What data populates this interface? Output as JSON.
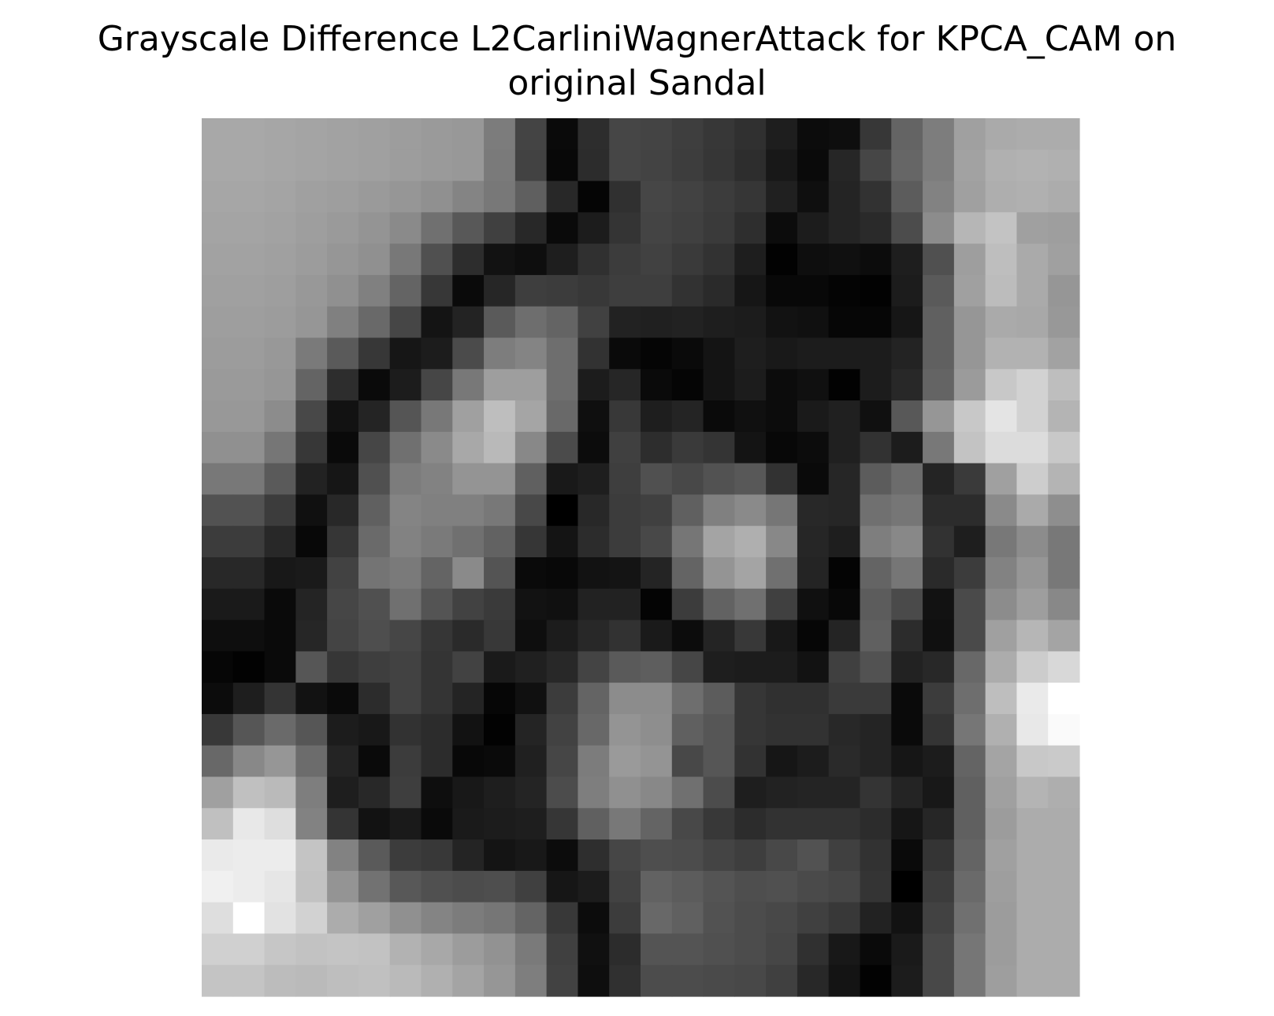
{
  "chart_data": {
    "type": "heatmap",
    "title": "Grayscale Difference L2CarliniWagnerAttack for KPCA_CAM on original Sandal",
    "title_lines": [
      "Grayscale Difference L2CarliniWagnerAttack for KPCA_CAM on",
      "original Sandal"
    ],
    "colormap": "gray",
    "axes_visible": false,
    "rows": 28,
    "cols": 28,
    "value_range": [
      0,
      255
    ],
    "values": [
      [
        168,
        168,
        166,
        164,
        162,
        160,
        157,
        154,
        152,
        124,
        68,
        10,
        45,
        70,
        68,
        62,
        55,
        48,
        30,
        12,
        14,
        55,
        100,
        125,
        160,
        170,
        172,
        172
      ],
      [
        168,
        168,
        166,
        164,
        162,
        160,
        157,
        154,
        152,
        122,
        66,
        8,
        44,
        70,
        67,
        61,
        54,
        45,
        24,
        10,
        38,
        70,
        102,
        125,
        162,
        176,
        178,
        176
      ],
      [
        166,
        166,
        164,
        160,
        158,
        154,
        150,
        144,
        132,
        120,
        95,
        40,
        5,
        48,
        70,
        66,
        60,
        54,
        32,
        15,
        36,
        50,
        92,
        130,
        160,
        174,
        176,
        172
      ],
      [
        164,
        164,
        162,
        158,
        154,
        148,
        138,
        112,
        88,
        64,
        40,
        10,
        28,
        52,
        68,
        64,
        58,
        46,
        12,
        28,
        36,
        42,
        76,
        140,
        182,
        195,
        160,
        158
      ],
      [
        162,
        162,
        160,
        156,
        150,
        144,
        120,
        80,
        45,
        18,
        14,
        30,
        48,
        60,
        65,
        58,
        50,
        30,
        2,
        14,
        16,
        12,
        30,
        80,
        158,
        190,
        170,
        160
      ],
      [
        160,
        160,
        158,
        152,
        144,
        128,
        100,
        55,
        10,
        38,
        62,
        60,
        56,
        62,
        62,
        50,
        42,
        22,
        8,
        8,
        4,
        2,
        28,
        90,
        160,
        188,
        170,
        150
      ],
      [
        158,
        158,
        156,
        150,
        128,
        105,
        70,
        20,
        35,
        90,
        110,
        100,
        65,
        34,
        32,
        34,
        30,
        28,
        18,
        16,
        6,
        6,
        22,
        96,
        150,
        170,
        168,
        152
      ],
      [
        156,
        156,
        152,
        122,
        90,
        55,
        22,
        28,
        75,
        125,
        132,
        110,
        50,
        10,
        5,
        10,
        20,
        30,
        25,
        28,
        28,
        28,
        35,
        96,
        150,
        178,
        178,
        162
      ],
      [
        154,
        154,
        150,
        100,
        45,
        10,
        28,
        70,
        120,
        158,
        158,
        110,
        28,
        38,
        10,
        5,
        20,
        28,
        12,
        16,
        2,
        28,
        40,
        100,
        155,
        200,
        210,
        190
      ],
      [
        152,
        152,
        140,
        72,
        18,
        36,
        85,
        120,
        160,
        190,
        165,
        105,
        15,
        56,
        30,
        36,
        10,
        16,
        12,
        26,
        32,
        16,
        88,
        150,
        200,
        228,
        210,
        180
      ],
      [
        144,
        144,
        118,
        55,
        10,
        70,
        112,
        138,
        168,
        185,
        136,
        75,
        12,
        64,
        45,
        58,
        52,
        20,
        8,
        12,
        32,
        50,
        28,
        120,
        195,
        220,
        220,
        200
      ],
      [
        120,
        120,
        90,
        34,
        22,
        80,
        124,
        130,
        148,
        148,
        96,
        25,
        30,
        62,
        80,
        72,
        82,
        88,
        50,
        10,
        38,
        92,
        108,
        36,
        58,
        160,
        205,
        180
      ],
      [
        82,
        82,
        60,
        16,
        40,
        96,
        132,
        128,
        128,
        120,
        72,
        0,
        40,
        60,
        64,
        96,
        128,
        138,
        118,
        40,
        38,
        112,
        118,
        44,
        44,
        138,
        170,
        142
      ],
      [
        60,
        60,
        40,
        8,
        54,
        106,
        130,
        122,
        112,
        98,
        54,
        20,
        44,
        60,
        72,
        118,
        164,
        175,
        136,
        38,
        30,
        126,
        136,
        50,
        30,
        120,
        140,
        120
      ],
      [
        40,
        40,
        24,
        26,
        66,
        116,
        122,
        100,
        138,
        84,
        10,
        8,
        18,
        20,
        36,
        100,
        148,
        164,
        112,
        36,
        4,
        100,
        118,
        42,
        60,
        130,
        150,
        120
      ],
      [
        26,
        26,
        10,
        36,
        70,
        80,
        112,
        84,
        66,
        58,
        18,
        16,
        34,
        34,
        4,
        60,
        98,
        112,
        64,
        16,
        8,
        92,
        74,
        18,
        74,
        140,
        158,
        136
      ],
      [
        14,
        14,
        10,
        38,
        68,
        78,
        70,
        54,
        42,
        56,
        14,
        28,
        40,
        50,
        26,
        12,
        36,
        56,
        24,
        6,
        36,
        96,
        44,
        16,
        74,
        160,
        182,
        164
      ],
      [
        6,
        2,
        10,
        86,
        54,
        62,
        66,
        52,
        66,
        26,
        32,
        40,
        68,
        90,
        94,
        70,
        30,
        28,
        28,
        18,
        64,
        82,
        34,
        40,
        104,
        172,
        204,
        216
      ],
      [
        12,
        30,
        52,
        18,
        10,
        44,
        66,
        52,
        36,
        6,
        16,
        60,
        100,
        140,
        140,
        110,
        92,
        54,
        48,
        48,
        58,
        58,
        10,
        60,
        110,
        190,
        234,
        255
      ],
      [
        56,
        86,
        106,
        86,
        28,
        24,
        50,
        44,
        18,
        2,
        36,
        66,
        104,
        148,
        142,
        96,
        86,
        54,
        50,
        50,
        40,
        36,
        10,
        52,
        118,
        176,
        232,
        250
      ],
      [
        104,
        136,
        150,
        108,
        36,
        10,
        60,
        44,
        8,
        10,
        32,
        70,
        124,
        154,
        148,
        72,
        86,
        50,
        22,
        28,
        42,
        36,
        22,
        28,
        100,
        164,
        200,
        202
      ],
      [
        160,
        192,
        186,
        126,
        30,
        40,
        62,
        14,
        24,
        30,
        36,
        76,
        126,
        144,
        136,
        112,
        76,
        30,
        34,
        36,
        36,
        52,
        36,
        24,
        96,
        160,
        180,
        174
      ],
      [
        192,
        232,
        222,
        130,
        52,
        18,
        26,
        10,
        26,
        28,
        30,
        54,
        96,
        120,
        100,
        72,
        56,
        44,
        50,
        50,
        50,
        44,
        22,
        38,
        96,
        156,
        172,
        172
      ],
      [
        234,
        236,
        236,
        196,
        130,
        90,
        60,
        56,
        36,
        20,
        24,
        12,
        46,
        70,
        78,
        76,
        68,
        62,
        72,
        82,
        64,
        50,
        10,
        52,
        100,
        160,
        172,
        172
      ],
      [
        240,
        236,
        230,
        194,
        148,
        114,
        88,
        80,
        76,
        78,
        64,
        22,
        28,
        66,
        98,
        92,
        84,
        78,
        80,
        74,
        70,
        52,
        0,
        60,
        106,
        158,
        172,
        172
      ],
      [
        222,
        255,
        226,
        210,
        172,
        160,
        144,
        132,
        124,
        118,
        100,
        56,
        12,
        60,
        104,
        96,
        82,
        76,
        72,
        64,
        56,
        34,
        18,
        66,
        112,
        156,
        172,
        172
      ],
      [
        208,
        208,
        198,
        194,
        196,
        194,
        178,
        168,
        156,
        146,
        122,
        64,
        16,
        44,
        84,
        84,
        80,
        76,
        70,
        48,
        24,
        10,
        26,
        72,
        118,
        156,
        172,
        172
      ],
      [
        196,
        196,
        188,
        186,
        190,
        192,
        186,
        176,
        164,
        150,
        126,
        66,
        14,
        48,
        76,
        76,
        74,
        72,
        64,
        40,
        20,
        2,
        28,
        72,
        118,
        158,
        172,
        172
      ]
    ]
  }
}
